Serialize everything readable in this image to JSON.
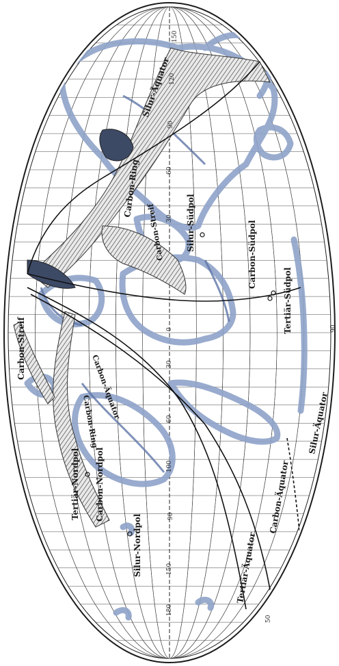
{
  "labels": {
    "silur_aequator_top": "Silur-Äquator",
    "carbon_ring_top": "Carbon-Ring",
    "carbon_streif_mid": "Carbon-Streif",
    "silur_suedpol": "Silur-Südpol",
    "carbon_suedpol": "Carbon-Südpol",
    "tertiaer_suedpol": "Tertiär-Südpol",
    "carbon_streif_left": "Carbon-Streif",
    "carbon_aequator_mid": "Carbon-Äquator",
    "carbon_ring_left": "Carbon-Ring",
    "tertiaer_nordpol": "Tertiär-Nordpol",
    "carbon_nordpol": "Carbon-Nordpol",
    "silur_nordpol": "Silur-Nordpol",
    "tertiaer_aequator": "Tertiär-Äquator",
    "carbon_aequator_bottom": "Carbon-Äquator",
    "silur_aequator_bottom": "Silur-Äquator"
  },
  "ticks": {
    "t150_top": "150",
    "t120": "120",
    "t90": "90",
    "t60": "60",
    "t30": "30",
    "t0": "0",
    "t30b": "30",
    "t60b": "60",
    "t90b": "90",
    "t100": "100",
    "t150": "150",
    "t180": "180",
    "t50": "50",
    "tside90": "90"
  },
  "colors": {
    "ink": "#1b1b1b",
    "land_blue": "#8ea3c9",
    "land_blue_dark": "#5f76a8",
    "hatch": "#2d2d2d",
    "paper": "#ffffff"
  }
}
